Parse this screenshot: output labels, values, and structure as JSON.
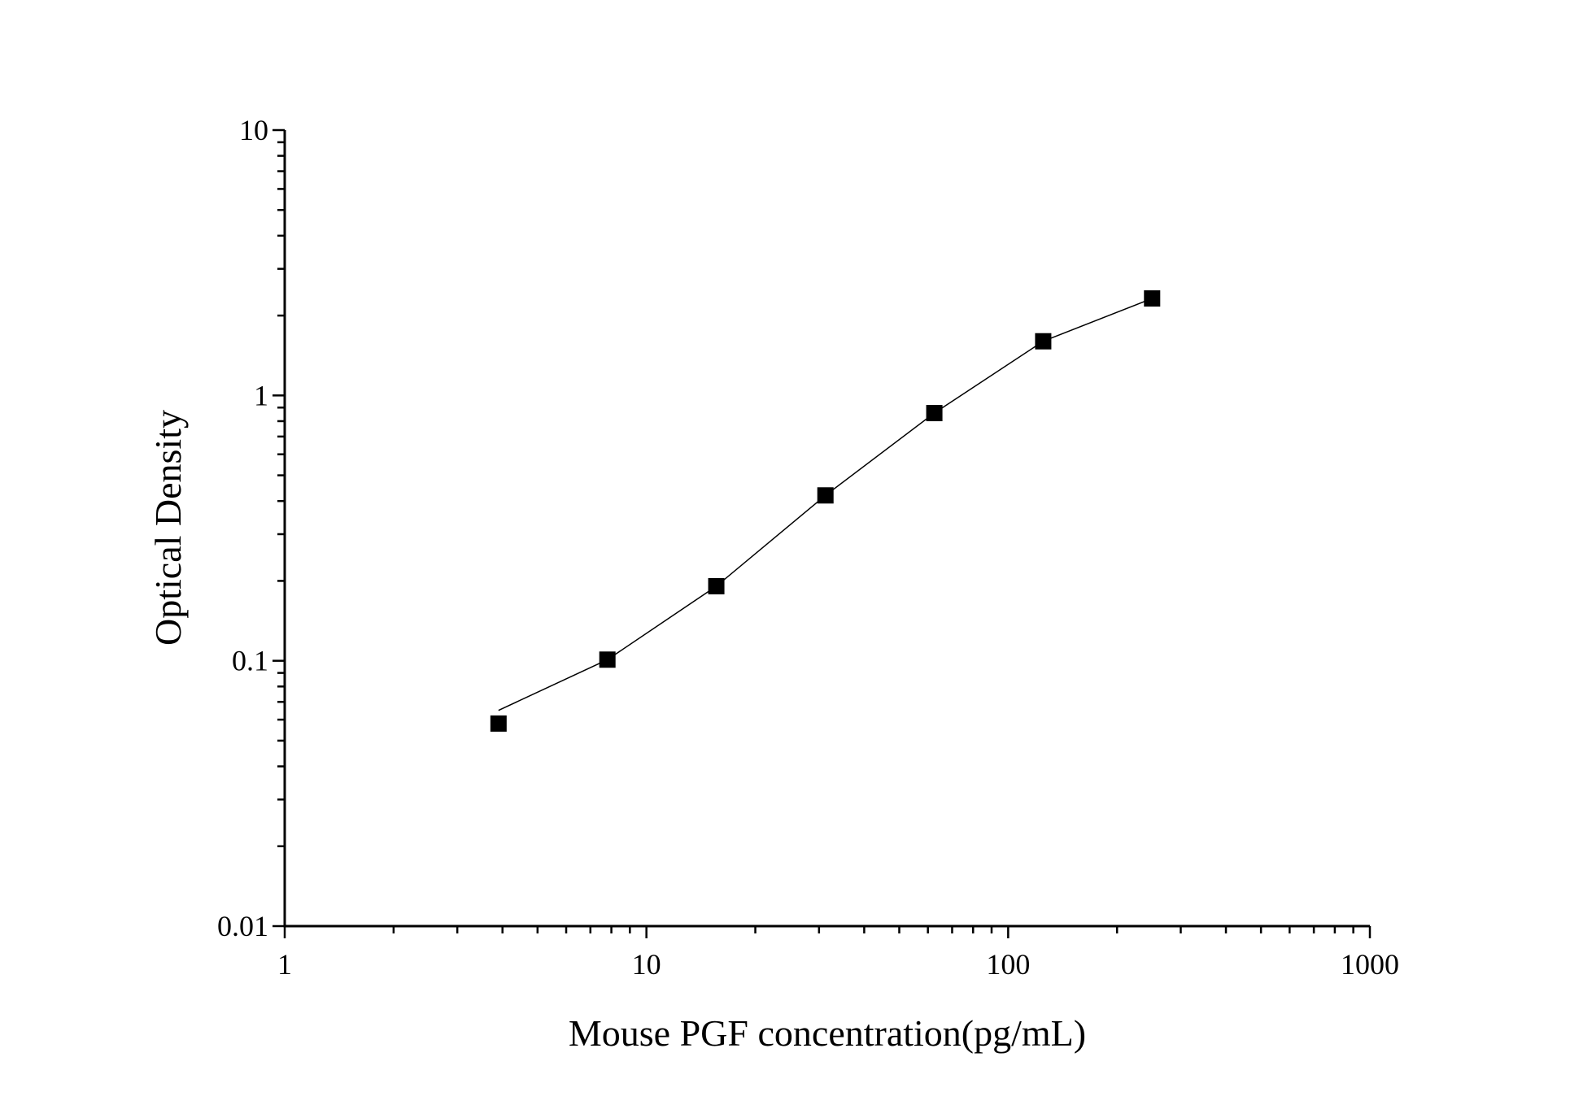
{
  "chart_data": {
    "type": "scatter",
    "title": "",
    "xlabel": "Mouse PGF concentration(pg/mL)",
    "ylabel": "Optical Density",
    "xscale": "log",
    "yscale": "log",
    "xlim": [
      1,
      1000
    ],
    "ylim": [
      0.01,
      10
    ],
    "x_ticks": [
      "1",
      "10",
      "100",
      "1000"
    ],
    "y_ticks": [
      "0.01",
      "0.1",
      "1",
      "10"
    ],
    "grid": false,
    "legend": "none",
    "marker": "square",
    "color": "#000000",
    "series": [
      {
        "x": [
          3.9,
          7.8,
          15.6,
          31.25,
          62.5,
          125,
          250
        ],
        "y": [
          0.058,
          0.101,
          0.191,
          0.42,
          0.858,
          1.6,
          2.32
        ]
      }
    ],
    "fit_line": {
      "x": [
        3.9,
        7.8,
        15.6,
        31.25,
        62.5,
        125,
        250
      ],
      "y": [
        0.065,
        0.101,
        0.191,
        0.42,
        0.858,
        1.6,
        2.32
      ]
    }
  }
}
